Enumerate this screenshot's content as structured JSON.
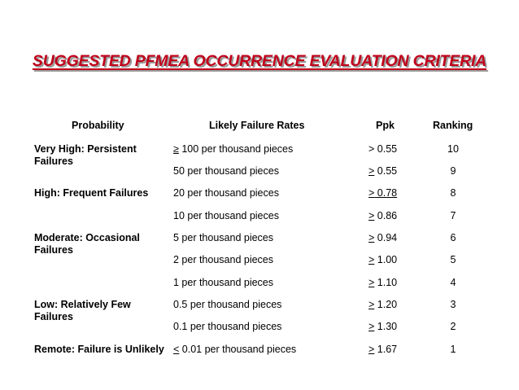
{
  "title": "SUGGESTED PFMEA OCCURRENCE EVALUATION CRITERIA",
  "columns": {
    "probability": "Probability",
    "rates": "Likely Failure Rates",
    "ppk": "Ppk",
    "ranking": "Ranking"
  },
  "rows": [
    {
      "probability": "Very High: Persistent Failures",
      "rate_sym": "≥",
      "rate": " 100 per thousand pieces",
      "ppk_sym": ">",
      "ppk": " 0.55",
      "rank": "10"
    },
    {
      "probability": "",
      "rate_sym": "",
      "rate": "50 per thousand pieces",
      "ppk_sym": ">",
      "ppk": " 0.55",
      "rank": "9"
    },
    {
      "probability": "High: Frequent Failures",
      "rate_sym": "",
      "rate": "20 per thousand pieces",
      "ppk_sym": ">",
      "ppk": " 0.78",
      "rank": "8"
    },
    {
      "probability": "",
      "rate_sym": "",
      "rate": "10 per thousand pieces",
      "ppk_sym": ">",
      "ppk": " 0.86",
      "rank": "7"
    },
    {
      "probability": "Moderate: Occasional Failures",
      "rate_sym": "",
      "rate": "5 per thousand pieces",
      "ppk_sym": ">",
      "ppk": " 0.94",
      "rank": "6"
    },
    {
      "probability": "",
      "rate_sym": "",
      "rate": "2 per thousand pieces",
      "ppk_sym": ">",
      "ppk": " 1.00",
      "rank": "5"
    },
    {
      "probability": "",
      "rate_sym": "",
      "rate": "1 per thousand pieces",
      "ppk_sym": ">",
      "ppk": " 1.10",
      "rank": "4"
    },
    {
      "probability": "Low: Relatively Few Failures",
      "rate_sym": "",
      "rate": "0.5 per thousand pieces",
      "ppk_sym": ">",
      "ppk": " 1.20",
      "rank": "3"
    },
    {
      "probability": "",
      "rate_sym": "",
      "rate": "0.1 per thousand pieces",
      "ppk_sym": ">",
      "ppk": " 1.30",
      "rank": "2"
    },
    {
      "probability": "Remote: Failure is Unlikely",
      "rate_sym": "<",
      "rate": " 0.01 per thousand pieces",
      "ppk_sym": ">",
      "ppk": " 1.67",
      "rank": "1"
    }
  ]
}
